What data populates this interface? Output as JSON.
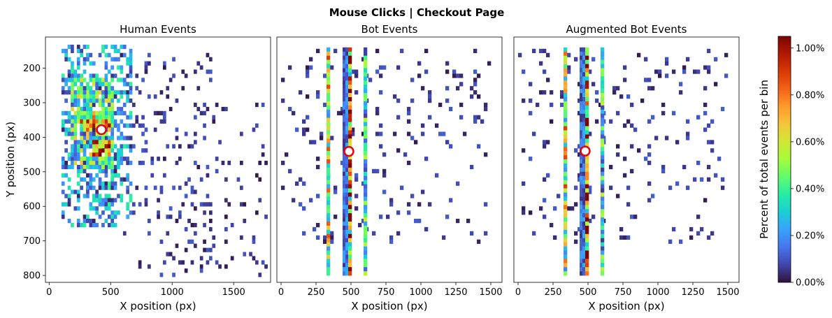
{
  "chart_data": {
    "type": "heatmap",
    "suptitle": "Mouse Clicks | Checkout Page",
    "xlabel": "X position (px)",
    "ylabel": "Y position (px)",
    "colorbar": {
      "label": "Percent of total events per bin",
      "ticks": [
        "0.00%",
        "0.20%",
        "0.40%",
        "0.60%",
        "0.80%",
        "1.00%"
      ],
      "range": [
        0,
        1.05
      ],
      "colormap": "turbo",
      "colors": [
        "#30123b",
        "#4145ab",
        "#4675ed",
        "#39a2fc",
        "#1bcfd4",
        "#24eca6",
        "#61fc6c",
        "#a4fc3b",
        "#d1e834",
        "#f3c63a",
        "#fe9b2d",
        "#f36315",
        "#d93806",
        "#b11901",
        "#7a0402"
      ]
    },
    "panels": [
      {
        "title": "Human Events",
        "xlim": [
          -30,
          1800
        ],
        "xticks": [
          0,
          500,
          1000,
          1500
        ],
        "xtick_labels": [
          "0",
          "500",
          "1000",
          "1500"
        ],
        "show_ylabel": true,
        "yticks": [
          200,
          300,
          400,
          500,
          600,
          700,
          800
        ],
        "ytick_labels": [
          "200",
          "300",
          "400",
          "500",
          "600",
          "700",
          "800"
        ],
        "marker": {
          "x": 425,
          "y": 378
        },
        "regions": [
          {
            "x": [
              100,
              650
            ],
            "y": [
              140,
              650
            ],
            "density": 0.45,
            "level": 0.2,
            "spread": 0.18
          },
          {
            "x": [
              180,
              520
            ],
            "y": [
              230,
              480
            ],
            "density": 0.75,
            "level": 0.35,
            "spread": 0.3
          },
          {
            "x": [
              250,
              480
            ],
            "y": [
              330,
              380
            ],
            "density": 0.9,
            "level": 0.6,
            "spread": 0.35
          },
          {
            "x": [
              360,
              480
            ],
            "y": [
              410,
              450
            ],
            "density": 0.95,
            "level": 0.75,
            "spread": 0.3
          },
          {
            "x": [
              620,
              1300
            ],
            "y": [
              150,
              800
            ],
            "density": 0.1,
            "level": 0.06,
            "spread": 0.05
          },
          {
            "x": [
              1250,
              1760
            ],
            "y": [
              300,
              800
            ],
            "density": 0.06,
            "level": 0.05,
            "spread": 0.04
          }
        ]
      },
      {
        "title": "Bot Events",
        "xlim": [
          -30,
          1580
        ],
        "xticks": [
          0,
          250,
          500,
          750,
          1000,
          1250,
          1500
        ],
        "xtick_labels": [
          "0",
          "250",
          "500",
          "750",
          "1000",
          "1250",
          "1500"
        ],
        "show_ylabel": false,
        "marker": {
          "x": 485,
          "y": 441
        },
        "columns": [
          {
            "x": 325,
            "level": 0.5,
            "spread": 0.35
          },
          {
            "x": 440,
            "level": 0.12,
            "spread": 0.1
          },
          {
            "x": 460,
            "level": 0.15,
            "spread": 0.1
          },
          {
            "x": 480,
            "level": 0.75,
            "spread": 0.5
          },
          {
            "x": 590,
            "level": 0.3,
            "spread": 0.25
          }
        ],
        "column_yrange": [
          140,
          790
        ],
        "scatter_region": {
          "x": [
            20,
            1480
          ],
          "y": [
            150,
            700
          ],
          "density": 0.07,
          "level": 0.06,
          "spread": 0.05
        }
      },
      {
        "title": "Augmented Bot Events",
        "xlim": [
          -30,
          1580
        ],
        "xticks": [
          0,
          250,
          500,
          750,
          1000,
          1250,
          1500
        ],
        "xtick_labels": [
          "0",
          "250",
          "500",
          "750",
          "1000",
          "1250",
          "1500"
        ],
        "show_ylabel": false,
        "marker": {
          "x": 480,
          "y": 440
        },
        "columns": [
          {
            "x": 325,
            "level": 0.5,
            "spread": 0.35
          },
          {
            "x": 440,
            "level": 0.12,
            "spread": 0.1
          },
          {
            "x": 460,
            "level": 0.15,
            "spread": 0.1
          },
          {
            "x": 480,
            "level": 0.75,
            "spread": 0.5
          },
          {
            "x": 590,
            "level": 0.3,
            "spread": 0.25
          }
        ],
        "column_yrange": [
          140,
          790
        ],
        "scatter_region": {
          "x": [
            20,
            1480
          ],
          "y": [
            150,
            700
          ],
          "density": 0.07,
          "level": 0.06,
          "spread": 0.05
        }
      }
    ],
    "ylim": [
      820,
      110
    ],
    "bin_width": 25,
    "bin_height": 12
  }
}
